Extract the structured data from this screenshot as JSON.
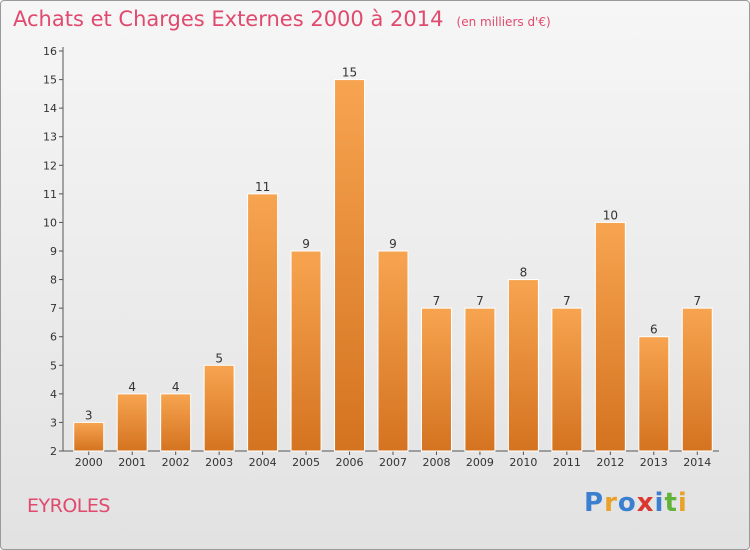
{
  "title": "Achats et Charges Externes 2000 à 2014",
  "subtitle": "(en milliers d'€)",
  "place": "EYROLES",
  "brand": {
    "text": "Proxiti",
    "letters": [
      {
        "ch": "P",
        "color": "#3b7fd1"
      },
      {
        "ch": "r",
        "color": "#e8a22a"
      },
      {
        "ch": "o",
        "color": "#3b7fd1"
      },
      {
        "ch": "x",
        "color": "#d9372f"
      },
      {
        "ch": "i",
        "color": "#3b7fd1"
      },
      {
        "ch": "t",
        "color": "#62b33a"
      },
      {
        "ch": "i",
        "color": "#e8a22a"
      }
    ]
  },
  "colors": {
    "title": "#e04a6e",
    "bar_top": "#f7a450",
    "bar_bottom": "#d47320",
    "text": "#333333"
  },
  "chart_data": {
    "type": "bar",
    "title": "Achats et Charges Externes 2000 à 2014",
    "subtitle": "(en milliers d'€)",
    "categories": [
      "2000",
      "2001",
      "2002",
      "2003",
      "2004",
      "2005",
      "2006",
      "2007",
      "2008",
      "2009",
      "2010",
      "2011",
      "2012",
      "2013",
      "2014"
    ],
    "values": [
      3,
      4,
      4,
      5,
      11,
      9,
      15,
      9,
      7,
      7,
      8,
      7,
      10,
      6,
      7
    ],
    "data_labels": [
      "3",
      "4",
      "4",
      "5",
      "11",
      "9",
      "15",
      "9",
      "7",
      "7",
      "8",
      "7",
      "10",
      "6",
      "7"
    ],
    "yticks": [
      "2",
      "3",
      "4",
      "5",
      "6",
      "7",
      "8",
      "9",
      "10",
      "11",
      "12",
      "13",
      "14",
      "15",
      "16"
    ],
    "ylim": [
      2,
      16
    ],
    "grid": false,
    "legend": "none"
  }
}
